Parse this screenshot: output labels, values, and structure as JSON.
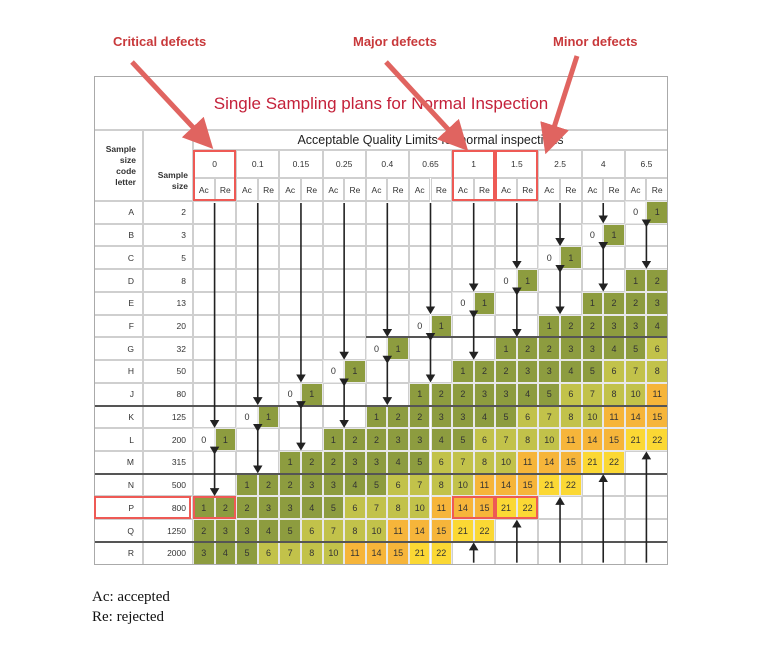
{
  "annotations": {
    "critical": "Critical defects",
    "major": "Major defects",
    "minor": "Minor defects"
  },
  "table": {
    "title": "Single Sampling plans for Normal Inspection",
    "aql_header": "Acceptable Quality Limits for normal inspections",
    "code_header": "Sample size code letter",
    "size_header": "Sample size",
    "ac_label": "Ac",
    "re_label": "Re",
    "aql_levels": [
      "0",
      "0.1",
      "0.15",
      "0.25",
      "0.4",
      "0.65",
      "1",
      "1.5",
      "2.5",
      "4",
      "6.5"
    ],
    "rows": [
      {
        "code": "A",
        "size": "2",
        "cells": [
          "down",
          "down",
          "down",
          "down",
          "down",
          "down",
          "down",
          "down",
          "down",
          "down",
          [
            0,
            1
          ]
        ]
      },
      {
        "code": "B",
        "size": "3",
        "cells": [
          "down",
          "down",
          "down",
          "down",
          "down",
          "down",
          "down",
          "down",
          "down",
          [
            0,
            1
          ],
          "updown"
        ]
      },
      {
        "code": "C",
        "size": "5",
        "cells": [
          "down",
          "down",
          "down",
          "down",
          "down",
          "down",
          "down",
          "down",
          [
            0,
            1
          ],
          "updown",
          "updown"
        ]
      },
      {
        "code": "D",
        "size": "8",
        "cells": [
          "down",
          "down",
          "down",
          "down",
          "down",
          "down",
          "down",
          [
            0,
            1
          ],
          "updown",
          "updown",
          [
            1,
            2
          ]
        ]
      },
      {
        "code": "E",
        "size": "13",
        "cells": [
          "down",
          "down",
          "down",
          "down",
          "down",
          "down",
          [
            0,
            1
          ],
          "updown",
          "updown",
          [
            1,
            2
          ],
          [
            2,
            3
          ]
        ]
      },
      {
        "code": "F",
        "size": "20",
        "cells": [
          "down",
          "down",
          "down",
          "down",
          "down",
          [
            0,
            1
          ],
          "updown",
          "updown",
          [
            1,
            2
          ],
          [
            2,
            3
          ],
          [
            3,
            4
          ]
        ]
      },
      {
        "code": "G",
        "size": "32",
        "cells": [
          "down",
          "down",
          "down",
          "down",
          [
            0,
            1
          ],
          "updown",
          "updown",
          [
            1,
            2
          ],
          [
            2,
            3
          ],
          [
            3,
            4
          ],
          [
            5,
            6
          ]
        ]
      },
      {
        "code": "H",
        "size": "50",
        "cells": [
          "down",
          "down",
          "down",
          [
            0,
            1
          ],
          "updown",
          "updown",
          [
            1,
            2
          ],
          [
            2,
            3
          ],
          [
            3,
            4
          ],
          [
            5,
            6
          ],
          [
            7,
            8
          ]
        ]
      },
      {
        "code": "J",
        "size": "80",
        "cells": [
          "down",
          "down",
          [
            0,
            1
          ],
          "updown",
          "updown",
          [
            1,
            2
          ],
          [
            2,
            3
          ],
          [
            3,
            4
          ],
          [
            5,
            6
          ],
          [
            7,
            8
          ],
          [
            10,
            11
          ]
        ]
      },
      {
        "code": "K",
        "size": "125",
        "cells": [
          "down",
          [
            0,
            1
          ],
          "updown",
          "updown",
          [
            1,
            2
          ],
          [
            2,
            3
          ],
          [
            3,
            4
          ],
          [
            5,
            6
          ],
          [
            7,
            8
          ],
          [
            10,
            11
          ],
          [
            14,
            15
          ]
        ]
      },
      {
        "code": "L",
        "size": "200",
        "cells": [
          [
            0,
            1
          ],
          "updown",
          "updown",
          [
            1,
            2
          ],
          [
            2,
            3
          ],
          [
            3,
            4
          ],
          [
            5,
            6
          ],
          [
            7,
            8
          ],
          [
            10,
            11
          ],
          [
            14,
            15
          ],
          [
            21,
            22
          ]
        ]
      },
      {
        "code": "M",
        "size": "315",
        "cells": [
          "updown",
          "updown",
          [
            1,
            2
          ],
          [
            2,
            3
          ],
          [
            3,
            4
          ],
          [
            5,
            6
          ],
          [
            7,
            8
          ],
          [
            10,
            11
          ],
          [
            14,
            15
          ],
          [
            21,
            22
          ],
          "up"
        ]
      },
      {
        "code": "N",
        "size": "500",
        "cells": [
          "updown",
          [
            1,
            2
          ],
          [
            2,
            3
          ],
          [
            3,
            4
          ],
          [
            5,
            6
          ],
          [
            7,
            8
          ],
          [
            10,
            11
          ],
          [
            14,
            15
          ],
          [
            21,
            22
          ],
          "up",
          "up"
        ]
      },
      {
        "code": "P",
        "size": "800",
        "cells": [
          [
            1,
            2
          ],
          [
            2,
            3
          ],
          [
            3,
            4
          ],
          [
            5,
            6
          ],
          [
            7,
            8
          ],
          [
            10,
            11
          ],
          [
            14,
            15
          ],
          [
            21,
            22
          ],
          "up",
          "up",
          "up"
        ]
      },
      {
        "code": "Q",
        "size": "1250",
        "cells": [
          [
            2,
            3
          ],
          [
            3,
            4
          ],
          [
            5,
            6
          ],
          [
            7,
            8
          ],
          [
            10,
            11
          ],
          [
            14,
            15
          ],
          [
            21,
            22
          ],
          "up",
          "up",
          "up",
          "up"
        ]
      },
      {
        "code": "R",
        "size": "2000",
        "cells": [
          [
            3,
            4
          ],
          [
            5,
            6
          ],
          [
            7,
            8
          ],
          [
            10,
            11
          ],
          [
            14,
            15
          ],
          [
            21,
            22
          ],
          "up",
          "up",
          "up",
          "up",
          "up"
        ]
      }
    ]
  },
  "highlight": {
    "row": "P",
    "columns": [
      "0",
      "1",
      "1.5"
    ]
  },
  "legend": [
    "Ac: accepted",
    "Re: rejected"
  ],
  "colors": {
    "annotation_red": "#c8393b",
    "highlight_red": "#ee5a55",
    "title_red": "#c4213a",
    "green_1_5": "#8d9c3f",
    "olive_6_10": "#c2c24a",
    "orange_11_15": "#f6b53a",
    "yellow_21_22": "#fbd834"
  }
}
